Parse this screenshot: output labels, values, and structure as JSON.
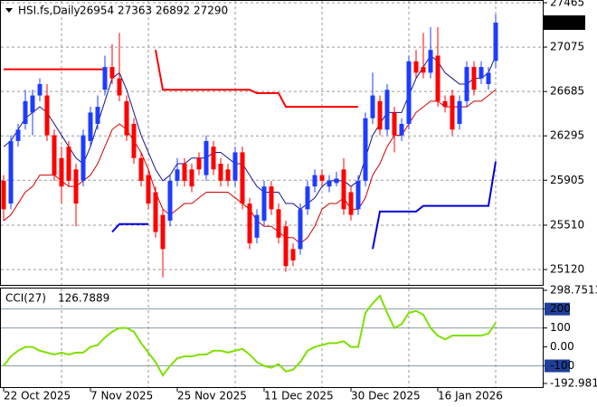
{
  "chart_data": [
    {
      "type": "candlestick",
      "title": "HSI.fs,Daily",
      "categories": [
        "22 Oct 2025",
        null,
        null,
        null,
        null,
        null,
        null,
        null,
        null,
        null,
        null,
        null,
        "7 Nov 2025",
        null,
        null,
        null,
        null,
        null,
        null,
        null,
        null,
        null,
        null,
        null,
        "25 Nov 2025",
        null,
        null,
        null,
        null,
        null,
        null,
        null,
        null,
        null,
        null,
        null,
        "11 Dec 2025",
        null,
        null,
        null,
        null,
        null,
        null,
        null,
        null,
        null,
        null,
        null,
        "30 Dec 2025",
        null,
        null,
        null,
        null,
        null,
        null,
        null,
        null,
        null,
        null,
        null,
        "16 Jan 2026",
        null,
        null,
        null,
        null,
        null,
        null,
        null,
        null
      ],
      "open": [
        25900,
        25700,
        26250,
        26400,
        26500,
        26650,
        26650,
        26300,
        26100,
        26200,
        26000,
        25900,
        26250,
        26400,
        26700,
        26900,
        26800,
        26600,
        26400,
        26100,
        25950,
        25800,
        25600,
        25550,
        25900,
        26050,
        26000,
        26100,
        25950,
        26200,
        26050,
        26000,
        25900,
        26150,
        25700,
        25400,
        25550,
        25850,
        25650,
        25500,
        25300,
        25300,
        25650,
        25850,
        25950,
        25850,
        25880,
        26000,
        25800,
        25650,
        25900,
        26450,
        26600,
        26350,
        26500,
        26300,
        26400,
        26950,
        26900,
        26850,
        27000,
        26600,
        26650,
        26400,
        26600,
        26900,
        26800,
        26750,
        26954
      ],
      "high": [
        25950,
        26300,
        26400,
        26700,
        26700,
        26800,
        26750,
        26350,
        26200,
        26250,
        26050,
        26350,
        26550,
        26650,
        27000,
        27100,
        27200,
        26650,
        26450,
        26150,
        26000,
        25850,
        25650,
        25950,
        26100,
        26100,
        26050,
        26150,
        26300,
        26250,
        26100,
        26050,
        26200,
        26200,
        25750,
        25650,
        25900,
        25900,
        25700,
        25550,
        25350,
        25700,
        25900,
        26000,
        26000,
        25950,
        25980,
        26100,
        25850,
        25950,
        26500,
        26850,
        26650,
        26750,
        26550,
        26450,
        27000,
        27050,
        27200,
        27250,
        27250,
        26650,
        26700,
        26650,
        26950,
        26950,
        26950,
        26900,
        27363
      ],
      "low": [
        25550,
        25650,
        26200,
        26350,
        26300,
        26600,
        26250,
        25900,
        25700,
        25850,
        25500,
        25850,
        26200,
        26350,
        26650,
        26750,
        26600,
        26250,
        26050,
        25850,
        25650,
        25400,
        25050,
        25500,
        25850,
        25850,
        25800,
        25950,
        25900,
        25950,
        25850,
        25850,
        25850,
        25650,
        25300,
        25350,
        25500,
        25600,
        25350,
        25100,
        25150,
        25250,
        25600,
        25800,
        25850,
        25800,
        25850,
        25600,
        25550,
        25600,
        25850,
        26400,
        26300,
        26300,
        26150,
        26250,
        26350,
        26800,
        26800,
        26800,
        26550,
        26500,
        26300,
        26350,
        26550,
        26650,
        26750,
        26700,
        26892
      ],
      "close": [
        25650,
        26250,
        26350,
        26600,
        26650,
        26750,
        26300,
        25950,
        25850,
        25900,
        25700,
        26300,
        26500,
        26550,
        26900,
        26800,
        26650,
        26300,
        26100,
        25900,
        25700,
        25450,
        25300,
        25900,
        26000,
        25900,
        25850,
        26000,
        26250,
        26000,
        25900,
        25900,
        26150,
        25700,
        25350,
        25600,
        25850,
        25650,
        25400,
        25150,
        25200,
        25650,
        25850,
        25950,
        25900,
        25900,
        25920,
        25650,
        25600,
        25900,
        26450,
        26650,
        26350,
        26700,
        26300,
        26400,
        26950,
        26850,
        26850,
        27050,
        26600,
        26550,
        26350,
        26600,
        26900,
        26700,
        26900,
        26850,
        27290
      ],
      "up_color": "#1e3cff",
      "down_color": "#ff0000",
      "series": [
        {
          "color": "#16168c",
          "width": 1,
          "values": [
            26200,
            26250,
            26350,
            26450,
            26500,
            26550,
            26500,
            26400,
            26300,
            26200,
            26100,
            26050,
            26200,
            26400,
            26600,
            26800,
            26850,
            26700,
            26500,
            26300,
            26150,
            26000,
            25900,
            25950,
            26050,
            26050,
            26100,
            26100,
            26100,
            26150,
            26150,
            26100,
            26050,
            26050,
            25950,
            25850,
            25800,
            25800,
            25800,
            25700,
            25700,
            25650,
            25700,
            25750,
            25850,
            25900,
            25900,
            25900,
            25850,
            25900,
            26100,
            26300,
            26400,
            26500,
            26500,
            26500,
            26650,
            26800,
            26900,
            27000,
            26950,
            26850,
            26800,
            26750,
            26750,
            26800,
            26800,
            26850,
            27000
          ]
        },
        {
          "color": "#d00000",
          "width": 1,
          "values": [
            25550,
            25600,
            25700,
            25800,
            25850,
            25950,
            25950,
            25950,
            25900,
            25850,
            25850,
            25900,
            25950,
            26050,
            26200,
            26350,
            26400,
            26350,
            26250,
            26150,
            26000,
            25800,
            25650,
            25600,
            25650,
            25700,
            25700,
            25750,
            25800,
            25800,
            25800,
            25800,
            25750,
            25700,
            25650,
            25550,
            25500,
            25500,
            25450,
            25400,
            25400,
            25350,
            25400,
            25500,
            25650,
            25700,
            25700,
            25750,
            25650,
            25650,
            25750,
            25950,
            26050,
            26200,
            26300,
            26300,
            26400,
            26500,
            26550,
            26600,
            26600,
            26550,
            26550,
            26550,
            26550,
            26600,
            26600,
            26650,
            26700
          ]
        },
        {
          "color": "#ff0000",
          "width": 2,
          "values": [
            26880,
            26880,
            26880,
            26880,
            26880,
            26880,
            26880,
            26880,
            26880,
            26880,
            26880,
            26880,
            26880,
            26880,
            26880,
            null,
            null,
            null,
            null,
            null,
            null,
            27050,
            26700,
            26700,
            26700,
            26700,
            26700,
            26700,
            26700,
            26700,
            26700,
            26700,
            26700,
            26700,
            26700,
            26670,
            26670,
            26670,
            26670,
            26550,
            26550,
            26550,
            26550,
            26550,
            26550,
            26550,
            26550,
            26550,
            26550,
            26550,
            null,
            null,
            null,
            null,
            null,
            null,
            null,
            null,
            null,
            null,
            null,
            null,
            null,
            null,
            null,
            null,
            null,
            null,
            null
          ]
        },
        {
          "color": "#0000dc",
          "width": 2,
          "values": [
            null,
            null,
            null,
            null,
            null,
            null,
            null,
            null,
            null,
            null,
            null,
            null,
            null,
            null,
            null,
            25450,
            25520,
            25520,
            25520,
            25520,
            25520,
            null,
            null,
            null,
            null,
            null,
            null,
            null,
            null,
            null,
            null,
            null,
            null,
            null,
            null,
            null,
            null,
            null,
            null,
            null,
            null,
            null,
            null,
            null,
            null,
            null,
            null,
            null,
            null,
            null,
            null,
            25300,
            25630,
            25630,
            25630,
            25630,
            25630,
            25630,
            25680,
            25680,
            25680,
            25680,
            25680,
            25680,
            25680,
            25680,
            25680,
            25680,
            26070
          ]
        }
      ],
      "ylim": [
        24985,
        27481
      ],
      "yticks": [
        27465,
        27075,
        26685,
        26295,
        25905,
        25510,
        25120
      ],
      "grid": true
    },
    {
      "type": "line",
      "title": "CCI(27)",
      "series": [
        {
          "color": "#7ee000",
          "values": [
            -100,
            -50,
            -20,
            0,
            0,
            -20,
            -30,
            -40,
            -30,
            -40,
            -30,
            -30,
            0,
            10,
            50,
            80,
            100,
            100,
            80,
            20,
            -30,
            -80,
            -150,
            -100,
            -60,
            -50,
            -50,
            -40,
            -40,
            -20,
            -20,
            -30,
            -20,
            -10,
            -40,
            -80,
            -100,
            -110,
            -90,
            -130,
            -120,
            -80,
            -20,
            0,
            10,
            20,
            20,
            30,
            0,
            0,
            180,
            230,
            270,
            180,
            100,
            120,
            180,
            190,
            170,
            100,
            60,
            40,
            60,
            60,
            60,
            60,
            60,
            70,
            126.7889
          ]
        }
      ],
      "ylim": [
        -192.9817,
        298.7513
      ],
      "yticks": [
        298.7513,
        200,
        100,
        {
          "value": 0,
          "label": "0.00"
        },
        -100,
        -192.9817
      ]
    }
  ]
}
